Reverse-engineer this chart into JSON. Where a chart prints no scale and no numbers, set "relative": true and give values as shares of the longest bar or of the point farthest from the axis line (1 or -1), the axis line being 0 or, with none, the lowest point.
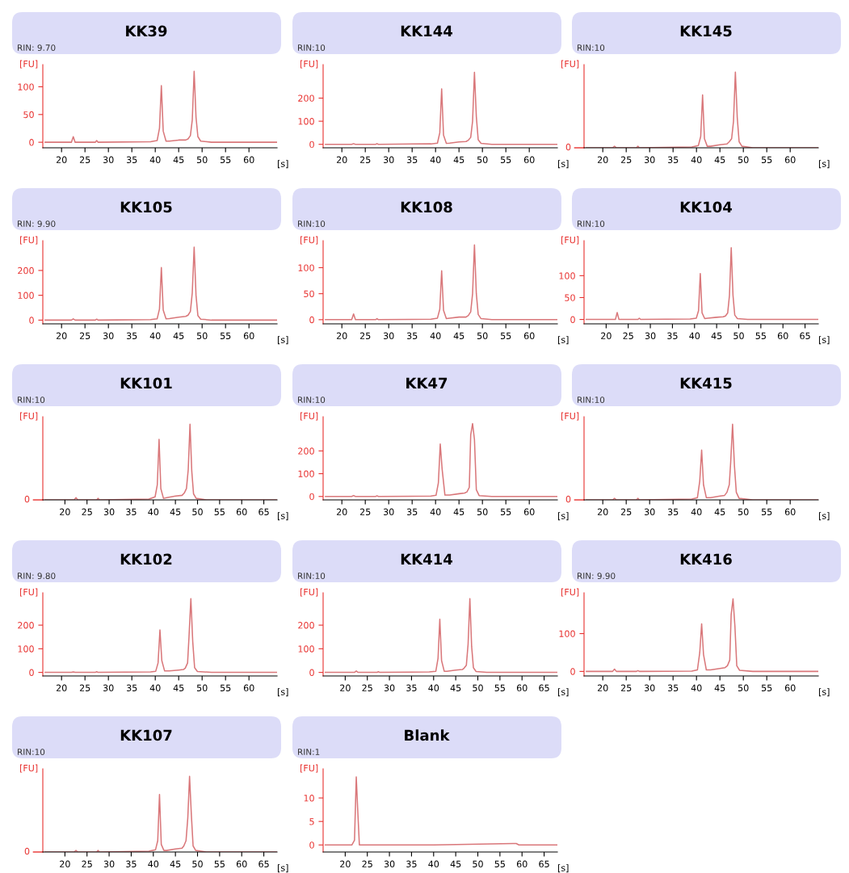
{
  "chart_data": [
    {
      "type": "line",
      "title": "KK39",
      "subtitle": "RIN: 9.70",
      "ylabel": "[FU]",
      "xlabel": "[s]",
      "color": "#d9777a",
      "xlim": [
        16,
        66
      ],
      "xticks": [
        20,
        25,
        30,
        35,
        40,
        45,
        50,
        55,
        60
      ],
      "ylim": [
        -10,
        140
      ],
      "yticks": [
        0,
        50,
        100
      ],
      "x": [
        16.5,
        22.1,
        22.5,
        22.9,
        27.2,
        27.5,
        27.8,
        39,
        40.4,
        40.9,
        41.3,
        41.7,
        42.3,
        43,
        45,
        46.5,
        47,
        47.5,
        47.9,
        48.3,
        48.7,
        49.1,
        49.7,
        52,
        66
      ],
      "values": [
        0,
        0,
        10,
        0,
        0,
        3,
        0,
        1,
        3,
        25,
        102,
        20,
        2,
        2,
        4,
        4,
        6,
        12,
        40,
        128,
        45,
        10,
        2,
        0,
        0
      ]
    },
    {
      "type": "line",
      "title": "KK144",
      "subtitle": "RIN:10",
      "ylabel": "[FU]",
      "xlabel": "[s]",
      "color": "#d9777a",
      "xlim": [
        16,
        66
      ],
      "xticks": [
        20,
        25,
        30,
        35,
        40,
        45,
        50,
        55,
        60
      ],
      "ylim": [
        -15,
        345
      ],
      "yticks": [
        0,
        100,
        200
      ],
      "x": [
        16.5,
        22.1,
        22.5,
        22.9,
        27.2,
        27.5,
        27.8,
        39,
        40.4,
        40.9,
        41.3,
        41.7,
        42.3,
        43,
        45,
        46.5,
        47,
        47.5,
        47.9,
        48.3,
        48.7,
        49.1,
        49.7,
        52,
        66
      ],
      "values": [
        0,
        0,
        3,
        0,
        0,
        3,
        0,
        2,
        5,
        50,
        240,
        40,
        4,
        5,
        10,
        12,
        18,
        30,
        100,
        312,
        120,
        20,
        4,
        0,
        0
      ]
    },
    {
      "type": "line",
      "title": "KK145",
      "subtitle": "RIN:10",
      "ylabel": "[FU]",
      "xlabel": "[s]",
      "color": "#d9777a",
      "xlim": [
        16,
        66
      ],
      "xticks": [
        20,
        25,
        30,
        35,
        40,
        45,
        50,
        55,
        60
      ],
      "relative": true,
      "annotations": [
        "0"
      ],
      "x": [
        16.5,
        22.1,
        22.5,
        22.9,
        27.2,
        27.5,
        27.8,
        39,
        40.4,
        40.9,
        41.3,
        41.7,
        42.3,
        43,
        45,
        46.5,
        47,
        47.5,
        47.9,
        48.3,
        48.7,
        49.1,
        49.7,
        52,
        66
      ],
      "values": [
        0,
        0,
        0.02,
        0,
        0,
        0.02,
        0,
        0.01,
        0.03,
        0.15,
        0.7,
        0.12,
        0.02,
        0.02,
        0.04,
        0.05,
        0.08,
        0.12,
        0.35,
        1,
        0.4,
        0.08,
        0.02,
        0,
        0
      ]
    },
    {
      "type": "line",
      "title": "KK105",
      "subtitle": "RIN: 9.90",
      "ylabel": "[FU]",
      "xlabel": "[s]",
      "color": "#d9777a",
      "xlim": [
        16,
        66
      ],
      "xticks": [
        20,
        25,
        30,
        35,
        40,
        45,
        50,
        55,
        60
      ],
      "ylim": [
        -15,
        320
      ],
      "yticks": [
        0,
        100,
        200
      ],
      "x": [
        16.5,
        22.1,
        22.5,
        22.9,
        27.2,
        27.5,
        27.8,
        39,
        40.4,
        40.9,
        41.3,
        41.7,
        42.3,
        43,
        45,
        46.5,
        47,
        47.5,
        47.9,
        48.3,
        48.7,
        49.1,
        49.7,
        52,
        66
      ],
      "values": [
        0,
        0,
        5,
        0,
        0,
        4,
        0,
        2,
        5,
        45,
        212,
        40,
        5,
        6,
        12,
        15,
        20,
        35,
        110,
        294,
        100,
        18,
        4,
        0,
        0
      ]
    },
    {
      "type": "line",
      "title": "KK108",
      "subtitle": "RIN:10",
      "ylabel": "[FU]",
      "xlabel": "[s]",
      "color": "#d9777a",
      "xlim": [
        16,
        66
      ],
      "xticks": [
        20,
        25,
        30,
        35,
        40,
        45,
        50,
        55,
        60
      ],
      "ylim": [
        -8,
        152
      ],
      "yticks": [
        0,
        50,
        100
      ],
      "x": [
        16.5,
        22.1,
        22.5,
        22.9,
        27.2,
        27.5,
        27.8,
        39,
        40.4,
        40.9,
        41.3,
        41.7,
        42.3,
        43,
        45,
        46.5,
        47,
        47.5,
        47.9,
        48.3,
        48.7,
        49.1,
        49.7,
        52,
        66
      ],
      "values": [
        0,
        0,
        11,
        0,
        0,
        2,
        0,
        1,
        3,
        20,
        94,
        18,
        2,
        3,
        5,
        5,
        8,
        15,
        50,
        144,
        50,
        10,
        2,
        0,
        0
      ]
    },
    {
      "type": "line",
      "title": "KK104",
      "subtitle": "RIN:10",
      "ylabel": "[FU]",
      "xlabel": "[s]",
      "color": "#d9777a",
      "xlim": [
        15,
        68
      ],
      "xticks": [
        20,
        25,
        30,
        35,
        40,
        45,
        50,
        55,
        60,
        65
      ],
      "ylim": [
        -10,
        180
      ],
      "yticks": [
        0,
        50,
        100
      ],
      "x": [
        15.5,
        22.1,
        22.5,
        22.9,
        27.2,
        27.5,
        27.8,
        39,
        40.4,
        40.9,
        41.3,
        41.7,
        42.3,
        43,
        45,
        46.5,
        47,
        47.5,
        47.9,
        48.3,
        48.7,
        49.1,
        49.7,
        52,
        68
      ],
      "values": [
        0,
        0,
        16,
        0,
        0,
        3,
        0,
        1,
        3,
        20,
        105,
        15,
        2,
        3,
        5,
        6,
        8,
        15,
        55,
        164,
        55,
        10,
        2,
        0,
        0
      ]
    },
    {
      "type": "line",
      "title": "KK101",
      "subtitle": "RIN:10",
      "ylabel": "[FU]",
      "xlabel": "[s]",
      "color": "#d9777a",
      "xlim": [
        15,
        68
      ],
      "xticks": [
        20,
        25,
        30,
        35,
        40,
        45,
        50,
        55,
        60,
        65
      ],
      "relative": true,
      "annotations": [
        "0"
      ],
      "x": [
        15.5,
        22.1,
        22.5,
        22.9,
        27.2,
        27.5,
        27.8,
        39,
        40.4,
        40.9,
        41.3,
        41.7,
        42.3,
        43,
        45,
        46.5,
        47,
        47.5,
        47.9,
        48.3,
        48.7,
        49.1,
        49.7,
        52,
        68
      ],
      "values": [
        0,
        0,
        0.03,
        0,
        0,
        0.02,
        0,
        0.01,
        0.04,
        0.2,
        0.8,
        0.15,
        0.02,
        0.03,
        0.05,
        0.06,
        0.09,
        0.15,
        0.4,
        1,
        0.38,
        0.08,
        0.02,
        0,
        0
      ]
    },
    {
      "type": "line",
      "title": "KK47",
      "subtitle": "RIN:10",
      "ylabel": "[FU]",
      "xlabel": "[s]",
      "color": "#d9777a",
      "xlim": [
        16,
        66
      ],
      "xticks": [
        20,
        25,
        30,
        35,
        40,
        45,
        50,
        55,
        60
      ],
      "ylim": [
        -15,
        350
      ],
      "yticks": [
        0,
        100,
        200
      ],
      "x": [
        16.5,
        22.1,
        22.5,
        22.9,
        27.2,
        27.5,
        27.8,
        39,
        40.1,
        40.6,
        41.0,
        41.4,
        42.0,
        43,
        45,
        46.2,
        46.7,
        47.2,
        47.5,
        47.9,
        48.3,
        48.7,
        49.3,
        52,
        66
      ],
      "values": [
        0,
        0,
        4,
        0,
        0,
        3,
        0,
        2,
        5,
        60,
        230,
        120,
        6,
        6,
        12,
        15,
        20,
        40,
        270,
        320,
        250,
        30,
        4,
        0,
        0
      ]
    },
    {
      "type": "line",
      "title": "KK415",
      "subtitle": "RIN:10",
      "ylabel": "[FU]",
      "xlabel": "[s]",
      "color": "#d9777a",
      "xlim": [
        16,
        66
      ],
      "xticks": [
        20,
        25,
        30,
        35,
        40,
        45,
        50,
        55,
        60
      ],
      "relative": true,
      "annotations": [
        "0"
      ],
      "x": [
        16.5,
        22.1,
        22.5,
        22.9,
        27.2,
        27.5,
        27.8,
        39,
        40.2,
        40.7,
        41.1,
        41.5,
        42.1,
        43,
        45,
        46,
        46.5,
        47,
        47.3,
        47.7,
        48.1,
        48.5,
        49.1,
        52,
        66
      ],
      "values": [
        0,
        0,
        0.02,
        0,
        0,
        0.02,
        0,
        0.01,
        0.03,
        0.25,
        0.66,
        0.2,
        0.03,
        0.03,
        0.05,
        0.06,
        0.1,
        0.2,
        0.5,
        1,
        0.45,
        0.1,
        0.02,
        0,
        0
      ]
    },
    {
      "type": "line",
      "title": "KK102",
      "subtitle": "RIN: 9.80",
      "ylabel": "[FU]",
      "xlabel": "[s]",
      "color": "#d9777a",
      "xlim": [
        16,
        66
      ],
      "xticks": [
        20,
        25,
        30,
        35,
        40,
        45,
        50,
        55,
        60
      ],
      "ylim": [
        -15,
        337
      ],
      "yticks": [
        0,
        100,
        200
      ],
      "x": [
        16.5,
        22.1,
        22.5,
        22.9,
        27.2,
        27.5,
        27.8,
        39,
        40.1,
        40.6,
        41.0,
        41.4,
        42.0,
        43,
        45,
        46,
        46.4,
        46.9,
        47.2,
        47.6,
        48.0,
        48.4,
        49.0,
        52,
        66
      ],
      "values": [
        0,
        0,
        2,
        0,
        0,
        3,
        0,
        2,
        5,
        40,
        180,
        50,
        6,
        6,
        10,
        12,
        18,
        40,
        150,
        312,
        130,
        20,
        4,
        0,
        0
      ]
    },
    {
      "type": "line",
      "title": "KK414",
      "subtitle": "RIN:10",
      "ylabel": "[FU]",
      "xlabel": "[s]",
      "color": "#d9777a",
      "xlim": [
        15,
        68
      ],
      "xticks": [
        20,
        25,
        30,
        35,
        40,
        45,
        50,
        55,
        60,
        65
      ],
      "ylim": [
        -15,
        337
      ],
      "yticks": [
        0,
        100,
        200
      ],
      "x": [
        15.5,
        22.1,
        22.5,
        22.9,
        27.2,
        27.5,
        27.8,
        39,
        40.5,
        41.0,
        41.4,
        41.8,
        42.4,
        43,
        45,
        46.5,
        46.9,
        47.4,
        47.8,
        48.2,
        48.6,
        49.0,
        49.6,
        52,
        68
      ],
      "values": [
        0,
        0,
        6,
        0,
        0,
        3,
        0,
        2,
        5,
        60,
        225,
        50,
        5,
        5,
        10,
        12,
        18,
        30,
        120,
        312,
        110,
        20,
        4,
        0,
        0
      ]
    },
    {
      "type": "line",
      "title": "KK416",
      "subtitle": "RIN: 9.90",
      "ylabel": "[FU]",
      "xlabel": "[s]",
      "color": "#d9777a",
      "xlim": [
        16,
        66
      ],
      "xticks": [
        20,
        25,
        30,
        35,
        40,
        45,
        50,
        55,
        60
      ],
      "ylim": [
        -12,
        208
      ],
      "yticks": [
        0,
        100
      ],
      "x": [
        16.5,
        22.1,
        22.5,
        22.9,
        27.2,
        27.5,
        27.8,
        39,
        40.2,
        40.7,
        41.1,
        41.5,
        42.1,
        43,
        45,
        46.1,
        46.6,
        47.1,
        47.4,
        47.8,
        48.2,
        48.6,
        49.2,
        52,
        66
      ],
      "values": [
        0,
        0,
        6,
        0,
        0,
        2,
        0,
        1,
        4,
        50,
        126,
        45,
        4,
        4,
        8,
        10,
        15,
        30,
        150,
        192,
        120,
        15,
        3,
        0,
        0
      ]
    },
    {
      "type": "line",
      "title": "KK107",
      "subtitle": "RIN:10",
      "ylabel": "[FU]",
      "xlabel": "[s]",
      "color": "#d9777a",
      "xlim": [
        15,
        68
      ],
      "xticks": [
        20,
        25,
        30,
        35,
        40,
        45,
        50,
        55,
        60,
        65
      ],
      "relative": true,
      "annotations": [
        "0"
      ],
      "x": [
        15.5,
        22.1,
        22.5,
        22.9,
        27.2,
        27.5,
        27.8,
        39,
        40.5,
        41.0,
        41.4,
        41.8,
        42.4,
        43,
        45,
        46.5,
        46.9,
        47.4,
        47.8,
        48.2,
        48.6,
        49.0,
        49.6,
        52,
        68
      ],
      "values": [
        0,
        0,
        0.02,
        0,
        0,
        0.02,
        0,
        0.01,
        0.03,
        0.15,
        0.76,
        0.1,
        0.02,
        0.02,
        0.04,
        0.05,
        0.08,
        0.15,
        0.45,
        1,
        0.5,
        0.08,
        0.02,
        0,
        0
      ]
    },
    {
      "type": "line",
      "title": "Blank",
      "subtitle": "RIN:1",
      "ylabel": "[FU]",
      "xlabel": "[s]",
      "color": "#d9777a",
      "xlim": [
        15,
        68
      ],
      "xticks": [
        20,
        25,
        30,
        35,
        40,
        45,
        50,
        55,
        60,
        65
      ],
      "ylim": [
        -1.5,
        16.2
      ],
      "yticks": [
        0,
        5,
        10
      ],
      "x": [
        15.5,
        21.5,
        22.1,
        22.5,
        22.8,
        23.2,
        25,
        40,
        58,
        58.7,
        59.3,
        68
      ],
      "values": [
        0,
        0,
        1,
        14.5,
        8,
        0,
        0,
        0,
        0.3,
        0.3,
        0,
        0
      ]
    }
  ]
}
